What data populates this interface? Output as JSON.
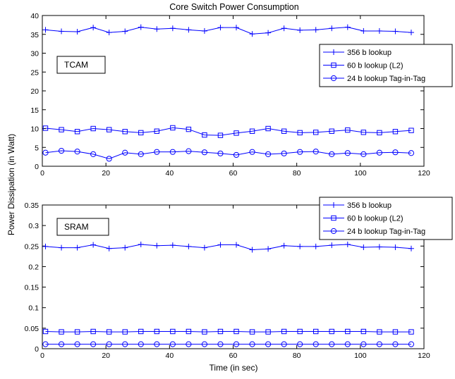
{
  "chart_data": {
    "type": "line",
    "title": "Core Switch Power Consumption",
    "xlabel": "Time (in sec)",
    "ylabel": "Power Dissipation (in Watt)",
    "x": [
      1,
      6,
      11,
      16,
      21,
      26,
      31,
      36,
      41,
      46,
      51,
      56,
      61,
      66,
      71,
      76,
      81,
      86,
      91,
      96,
      101,
      106,
      111,
      116
    ],
    "panels": [
      {
        "label": "TCAM",
        "xlim": [
          0,
          120
        ],
        "ylim": [
          0,
          40
        ],
        "xticks": [
          "0",
          "20",
          "40",
          "60",
          "80",
          "100",
          "120"
        ],
        "yticks": [
          "0",
          "5",
          "10",
          "15",
          "20",
          "25",
          "30",
          "35",
          "40"
        ],
        "legend_position": "right",
        "series": [
          {
            "name": "356 b lookup",
            "marker": "plus",
            "color": "#0000ff",
            "values": [
              36.2,
              35.8,
              35.7,
              36.8,
              35.5,
              35.8,
              36.9,
              36.4,
              36.6,
              36.2,
              35.9,
              36.8,
              36.8,
              35.1,
              35.4,
              36.6,
              36.1,
              36.2,
              36.6,
              36.9,
              35.9,
              35.9,
              35.8,
              35.5
            ]
          },
          {
            "name": "60 b lookup (L2)",
            "marker": "square",
            "color": "#0000ff",
            "values": [
              10.1,
              9.7,
              9.2,
              10.0,
              9.7,
              9.2,
              8.9,
              9.3,
              10.2,
              9.8,
              8.3,
              8.2,
              8.8,
              9.3,
              10.0,
              9.3,
              8.9,
              9.0,
              9.3,
              9.6,
              9.0,
              8.9,
              9.2,
              9.5
            ]
          },
          {
            "name": "24 b lookup Tag-in-Tag",
            "marker": "circle",
            "color": "#0000ff",
            "values": [
              3.6,
              4.1,
              3.9,
              3.2,
              2.0,
              3.6,
              3.2,
              3.8,
              3.8,
              4.0,
              3.7,
              3.4,
              3.0,
              3.8,
              3.2,
              3.4,
              3.8,
              3.9,
              3.2,
              3.5,
              3.2,
              3.6,
              3.7,
              3.5
            ]
          }
        ]
      },
      {
        "label": "SRAM",
        "xlim": [
          0,
          120
        ],
        "ylim": [
          0,
          0.35
        ],
        "xticks": [
          "0",
          "20",
          "40",
          "60",
          "80",
          "100",
          "120"
        ],
        "yticks": [
          "0",
          "0.05",
          "0.1",
          "0.15",
          "0.2",
          "0.25",
          "0.3",
          "0.35"
        ],
        "legend_position": "top-right",
        "series": [
          {
            "name": "356 b lookup",
            "marker": "plus",
            "color": "#0000ff",
            "values": [
              0.249,
              0.246,
              0.246,
              0.253,
              0.244,
              0.246,
              0.254,
              0.251,
              0.252,
              0.249,
              0.246,
              0.253,
              0.253,
              0.241,
              0.243,
              0.251,
              0.249,
              0.249,
              0.252,
              0.254,
              0.247,
              0.248,
              0.247,
              0.244
            ]
          },
          {
            "name": "60 b lookup (L2)",
            "marker": "square",
            "color": "#0000ff",
            "values": [
              0.042,
              0.041,
              0.041,
              0.042,
              0.041,
              0.041,
              0.042,
              0.042,
              0.042,
              0.042,
              0.041,
              0.042,
              0.042,
              0.041,
              0.041,
              0.042,
              0.042,
              0.042,
              0.042,
              0.042,
              0.042,
              0.041,
              0.041,
              0.041
            ]
          },
          {
            "name": "24 b lookup Tag-in-Tag",
            "marker": "circle",
            "color": "#0000ff",
            "values": [
              0.011,
              0.011,
              0.011,
              0.011,
              0.011,
              0.011,
              0.011,
              0.011,
              0.011,
              0.011,
              0.011,
              0.011,
              0.011,
              0.011,
              0.011,
              0.011,
              0.011,
              0.011,
              0.011,
              0.011,
              0.011,
              0.011,
              0.011,
              0.011
            ]
          }
        ]
      }
    ]
  }
}
